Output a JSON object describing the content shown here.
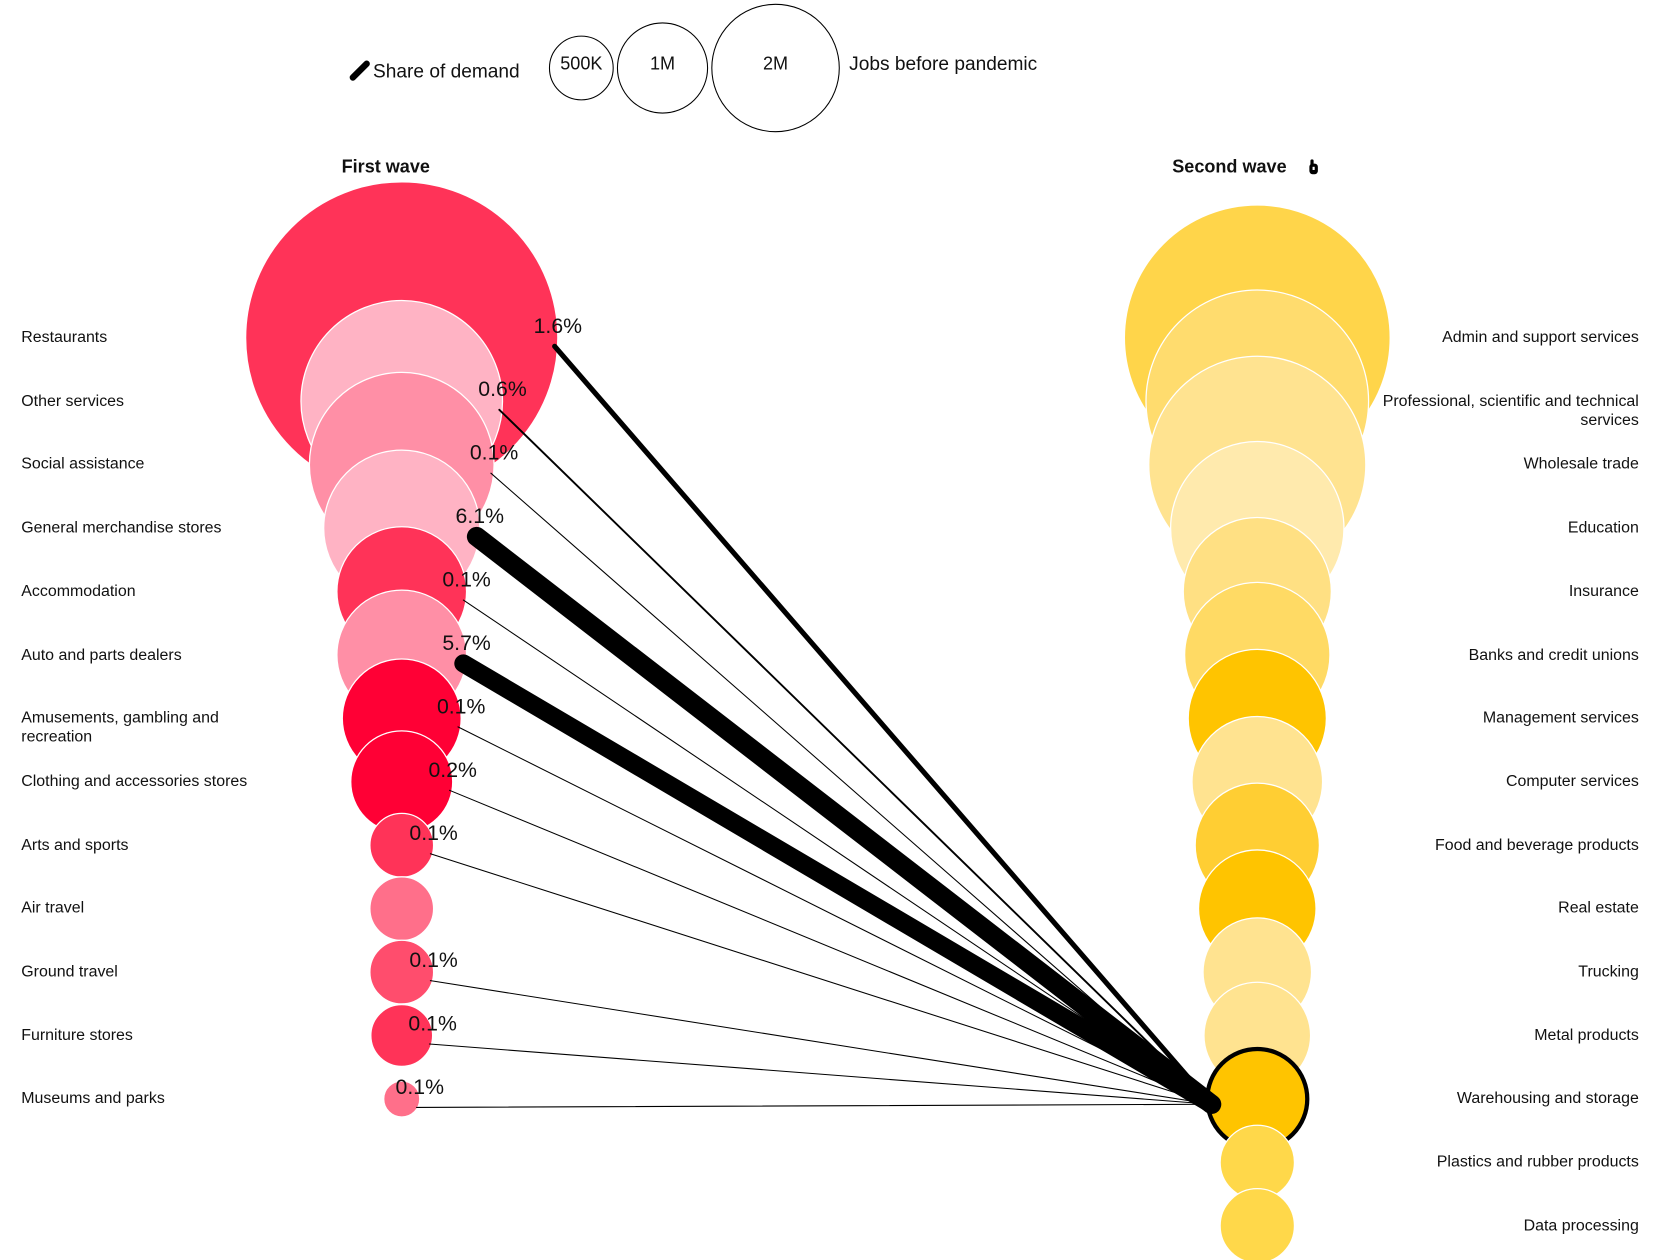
{
  "chart_data": {
    "type": "bubble-link",
    "legend": {
      "share_label": "Share of demand",
      "size_label": "Jobs before pandemic",
      "sizes": [
        {
          "value": 500000,
          "label": "500K"
        },
        {
          "value": 1000000,
          "label": "1M"
        },
        {
          "value": 2000000,
          "label": "2M"
        }
      ]
    },
    "first_wave": {
      "title": "First wave",
      "categories": [
        "Restaurants",
        "Other services",
        "Social assistance",
        "General merchandise stores",
        "Accommodation",
        "Auto and parts dealers",
        "Amusements, gambling and recreation",
        "Clothing and accessories stores",
        "Arts and sports",
        "Air travel",
        "Ground travel",
        "Furniture stores",
        "Museums and parks"
      ],
      "jobs": [
        12000000,
        5000000,
        4200000,
        3000000,
        2070000,
        2070000,
        1740000,
        1280000,
        500000,
        500000,
        500000,
        470000,
        160000
      ],
      "colors": [
        "#ff3358",
        "#ffb3c4",
        "#ff8fa6",
        "#ffb3c4",
        "#ff3358",
        "#ff8fa6",
        "#ff0035",
        "#ff0035",
        "#ff3358",
        "#ff6f8a",
        "#ff4d6d",
        "#ff3358",
        "#ff6f8a"
      ],
      "share": [
        1.6,
        0.6,
        0.1,
        6.1,
        0.1,
        5.7,
        0.1,
        0.2,
        0.1,
        null,
        0.1,
        0.1,
        0.1
      ],
      "value_labels": [
        "1.6%",
        "0.6%",
        "0.1%",
        "6.1%",
        "0.1%",
        "5.7%",
        "0.1%",
        "0.2%",
        "0.1%",
        null,
        "0.1%",
        "0.1%",
        "0.1%"
      ]
    },
    "second_wave": {
      "title": "Second wave",
      "categories": [
        "Admin and support services",
        "Professional, scientific and technical services",
        "Wholesale trade",
        "Education",
        "Insurance",
        "Banks and credit unions",
        "Management services",
        "Computer services",
        "Food and beverage products",
        "Real estate",
        "Trucking",
        "Metal products",
        "Warehousing and storage",
        "Plastics and rubber products",
        "Data processing"
      ],
      "jobs": [
        8700000,
        6100000,
        5800000,
        3700000,
        2700000,
        2600000,
        2350000,
        2100000,
        1900000,
        1700000,
        1450000,
        1400000,
        1230000,
        680000,
        680000
      ],
      "colors": [
        "#ffd54a",
        "#ffdc6e",
        "#ffe390",
        "#ffeaad",
        "#ffe083",
        "#ffda64",
        "#ffc400",
        "#ffe390",
        "#ffce33",
        "#ffc400",
        "#ffe390",
        "#ffe390",
        "#ffc400",
        "#ffd84a",
        "#ffd84a"
      ],
      "highlight": "Warehousing and storage"
    }
  }
}
